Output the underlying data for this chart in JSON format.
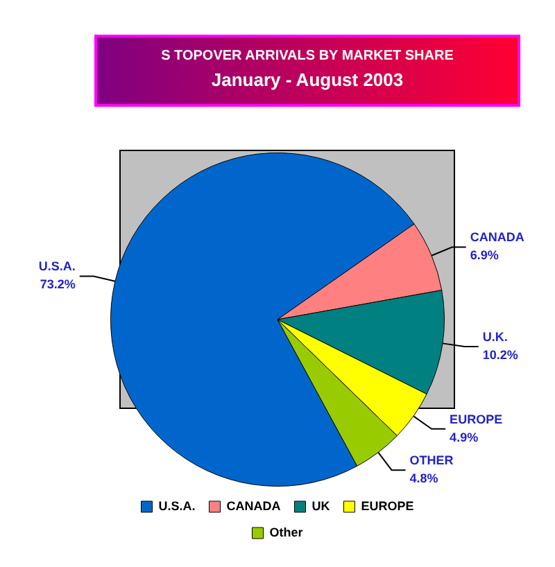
{
  "chart_data": {
    "type": "pie",
    "title": "S TOPOVER ARRIVALS BY MARKET SHARE",
    "subtitle": "January - August 2003",
    "categories": [
      "U.S.A.",
      "CANADA",
      "UK",
      "EUROPE",
      "Other"
    ],
    "values": [
      73.2,
      6.9,
      10.2,
      4.9,
      4.8
    ],
    "colors": [
      "#0066cc",
      "#ff8080",
      "#008080",
      "#ffff00",
      "#99cc00"
    ],
    "value_labels": [
      "U.S.A.\n73.2%",
      "CANADA\n6.9%",
      "U.K.\n10.2%",
      "EUROPE\n4.9%",
      "OTHER\n4.8%"
    ],
    "legend": "bottom"
  }
}
